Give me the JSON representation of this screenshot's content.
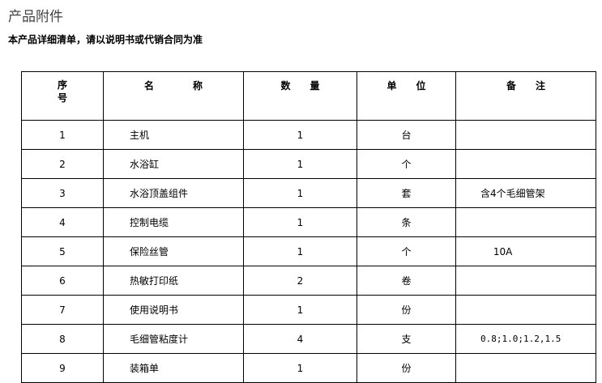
{
  "title": "产品附件",
  "subtitle": "本产品详细清单，请以说明书或代销合同为准",
  "table": {
    "headers": [
      "序\n号",
      "名　　　　称",
      "数　　量",
      "单　　位",
      "备　　注"
    ],
    "rows": [
      [
        "1",
        "主机",
        "1",
        "台",
        ""
      ],
      [
        "2",
        "水浴缸",
        "1",
        "个",
        ""
      ],
      [
        "3",
        "水浴顶盖组件",
        "1",
        "套",
        "含4个毛细管架"
      ],
      [
        "4",
        "控制电缆",
        "1",
        "条",
        ""
      ],
      [
        "5",
        "保险丝管",
        "1",
        "个",
        "　 10A"
      ],
      [
        "6",
        "热敏打印纸",
        "2",
        "卷",
        ""
      ],
      [
        "7",
        "使用说明书",
        "1",
        "份",
        ""
      ],
      [
        "8",
        "毛细管粘度计",
        "4",
        "支",
        "0.8;1.0;1.2,1.5"
      ],
      [
        "9",
        "装箱单",
        "1",
        "份",
        ""
      ]
    ]
  }
}
